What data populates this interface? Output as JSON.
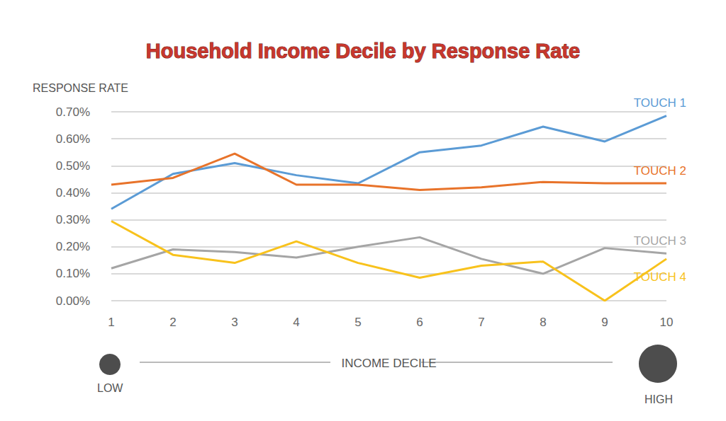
{
  "chart_data": {
    "type": "line",
    "title": "Household Income Decile by Response Rate",
    "y_label": "RESPONSE RATE",
    "x_label": "INCOME DECILE",
    "annotations": [
      "LOW",
      "HIGH"
    ],
    "categories": [
      "1",
      "2",
      "3",
      "4",
      "5",
      "6",
      "7",
      "8",
      "9",
      "10"
    ],
    "series": [
      {
        "name": "TOUCH 1",
        "color": "#5b9bd5",
        "values": [
          0.34,
          0.47,
          0.51,
          0.465,
          0.435,
          0.55,
          0.575,
          0.645,
          0.59,
          0.685
        ]
      },
      {
        "name": "TOUCH 2",
        "color": "#e8732a",
        "values": [
          0.43,
          0.455,
          0.545,
          0.43,
          0.43,
          0.41,
          0.42,
          0.44,
          0.435,
          0.435
        ]
      },
      {
        "name": "TOUCH 3",
        "color": "#a5a5a5",
        "values": [
          0.12,
          0.19,
          0.18,
          0.16,
          0.2,
          0.235,
          0.155,
          0.1,
          0.195,
          0.175
        ]
      },
      {
        "name": "TOUCH 4",
        "color": "#f8c21c",
        "values": [
          0.295,
          0.17,
          0.14,
          0.22,
          0.14,
          0.085,
          0.13,
          0.145,
          0.0,
          0.155
        ]
      }
    ],
    "ylim": [
      0,
      0.7
    ],
    "yticks": [
      {
        "value": 0,
        "label": "0.00%"
      },
      {
        "value": 0.1,
        "label": "0.10%"
      },
      {
        "value": 0.2,
        "label": "0.20%"
      },
      {
        "value": 0.3,
        "label": "0.30%"
      },
      {
        "value": 0.4,
        "label": "0.40%"
      },
      {
        "value": 0.5,
        "label": "0.50%"
      },
      {
        "value": 0.6,
        "label": "0.60%"
      },
      {
        "value": 0.7,
        "label": "0.70%"
      }
    ],
    "grid": true
  }
}
